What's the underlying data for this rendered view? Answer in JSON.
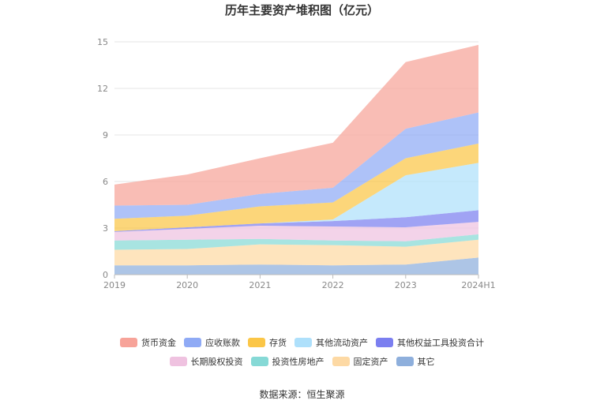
{
  "title": "历年主要资产堆积图（亿元）",
  "source": "数据来源：恒生聚源",
  "colors": {
    "货币资金": "#f7a399",
    "应收账款": "#8faaf5",
    "存货": "#fbc647",
    "其他流动资产": "#aee0fb",
    "其他权益工具投资合计": "#7b7ff0",
    "长期股权投资": "#efc2e0",
    "投资性房地产": "#86d9d6",
    "固定资产": "#fdd9a4",
    "其它": "#8eafdc"
  },
  "legend_rows": [
    [
      "货币资金",
      "应收账款",
      "存货",
      "其他流动资产",
      "其他权益工具投资合计"
    ],
    [
      "长期股权投资",
      "投资性房地产",
      "固定资产",
      "其它"
    ]
  ],
  "chart_data": {
    "type": "area",
    "stacked": true,
    "title": "历年主要资产堆积图（亿元）",
    "categories": [
      "2019",
      "2020",
      "2021",
      "2022",
      "2023",
      "2024H1"
    ],
    "ylim": [
      0,
      15
    ],
    "yticks": [
      0,
      3,
      6,
      9,
      12,
      15
    ],
    "grid": true,
    "legend_position": "bottom",
    "series": [
      {
        "name": "其它",
        "values": [
          0.6,
          0.6,
          0.65,
          0.6,
          0.65,
          1.1
        ]
      },
      {
        "name": "固定资产",
        "values": [
          1.0,
          1.05,
          1.3,
          1.3,
          1.15,
          1.15
        ]
      },
      {
        "name": "投资性房地产",
        "values": [
          0.6,
          0.6,
          0.35,
          0.3,
          0.35,
          0.35
        ]
      },
      {
        "name": "长期股权投资",
        "values": [
          0.55,
          0.7,
          0.85,
          0.9,
          0.9,
          0.8
        ]
      },
      {
        "name": "其他权益工具投资合计",
        "values": [
          0.05,
          0.1,
          0.15,
          0.35,
          0.65,
          0.75
        ]
      },
      {
        "name": "其他流动资产",
        "values": [
          0.0,
          0.0,
          0.0,
          0.1,
          2.7,
          3.05
        ]
      },
      {
        "name": "存货",
        "values": [
          0.8,
          0.75,
          1.1,
          1.1,
          1.1,
          1.25
        ]
      },
      {
        "name": "应收账款",
        "values": [
          0.85,
          0.7,
          0.8,
          0.95,
          1.9,
          2.0
        ]
      },
      {
        "name": "货币资金",
        "values": [
          1.35,
          1.95,
          2.3,
          2.9,
          4.3,
          4.35
        ]
      }
    ]
  }
}
